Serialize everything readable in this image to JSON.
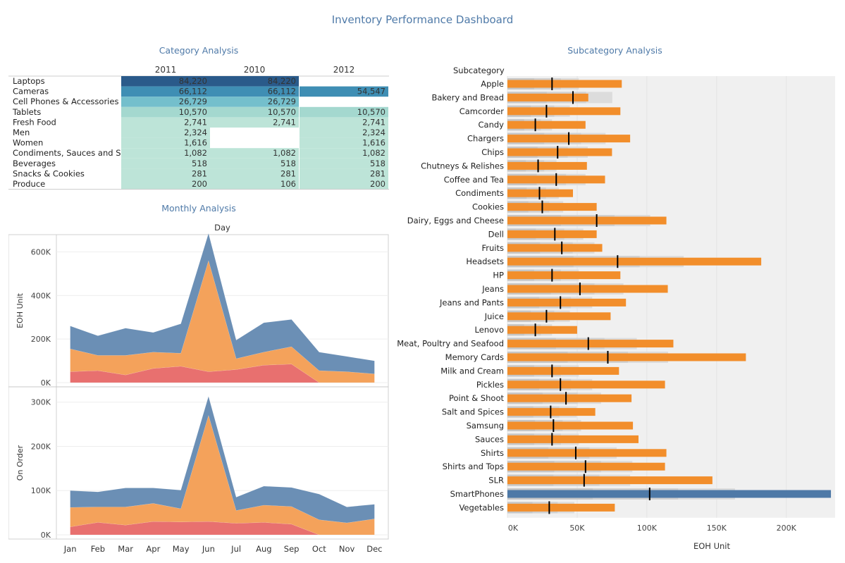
{
  "dashboard": {
    "title": "Inventory Performance Dashboard",
    "category_title": "Category Analysis",
    "monthly_title": "Monthly Analysis",
    "subcategory_title": "Subcategory Analysis"
  },
  "colors": {
    "title": "#4f7aa8",
    "orange": "#f28e2b",
    "orange_light": "#f4a25b",
    "blue": "#6b8fb5",
    "red": "#e8706f",
    "smartphone_blue": "#4e79a7",
    "heat": [
      "#bde4d8",
      "#a4d8cf",
      "#74bfcc",
      "#3f8eb4",
      "#2a5a8a"
    ]
  },
  "chart_data": [
    {
      "type": "table",
      "title": "Category Analysis",
      "columns": [
        "2011",
        "2010",
        "2012"
      ],
      "rows": [
        {
          "label": "Laptops",
          "values": [
            "84,220",
            "84,220",
            null
          ],
          "raw": [
            84220,
            84220,
            null
          ]
        },
        {
          "label": "Cameras",
          "values": [
            "66,112",
            "66,112",
            "54,547"
          ],
          "raw": [
            66112,
            66112,
            54547
          ]
        },
        {
          "label": "Cell Phones & Accessories",
          "values": [
            "26,729",
            "26,729",
            null
          ],
          "raw": [
            26729,
            26729,
            null
          ]
        },
        {
          "label": "Tablets",
          "values": [
            "10,570",
            "10,570",
            "10,570"
          ],
          "raw": [
            10570,
            10570,
            10570
          ]
        },
        {
          "label": "Fresh Food",
          "values": [
            "2,741",
            "2,741",
            "2,741"
          ],
          "raw": [
            2741,
            2741,
            2741
          ]
        },
        {
          "label": "Men",
          "values": [
            "2,324",
            null,
            "2,324"
          ],
          "raw": [
            2324,
            null,
            2324
          ]
        },
        {
          "label": "Women",
          "values": [
            "1,616",
            null,
            "1,616"
          ],
          "raw": [
            1616,
            null,
            1616
          ]
        },
        {
          "label": "Condiments, Sauces and S..",
          "values": [
            "1,082",
            "1,082",
            "1,082"
          ],
          "raw": [
            1082,
            1082,
            1082
          ]
        },
        {
          "label": "Beverages",
          "values": [
            "518",
            "518",
            "518"
          ],
          "raw": [
            518,
            518,
            518
          ]
        },
        {
          "label": "Snacks & Cookies",
          "values": [
            "281",
            "281",
            "281"
          ],
          "raw": [
            281,
            281,
            281
          ]
        },
        {
          "label": "Produce",
          "values": [
            "200",
            "106",
            "200"
          ],
          "raw": [
            200,
            106,
            200
          ]
        }
      ]
    },
    {
      "type": "area",
      "title": "Monthly Analysis",
      "xlabel": "Day",
      "categories": [
        "Jan",
        "Feb",
        "Mar",
        "Apr",
        "May",
        "Jun",
        "Jul",
        "Aug",
        "Sep",
        "Oct",
        "Nov",
        "Dec"
      ],
      "panels": [
        {
          "ylabel": "EOH Unit",
          "ylim": [
            0,
            660000
          ],
          "yticks": [
            0,
            200000,
            400000,
            600000
          ],
          "ytick_labels": [
            "0K",
            "200K",
            "400K",
            "600K"
          ],
          "series": [
            {
              "values": [
                50000,
                55000,
                35000,
                65000,
                75000,
                50000,
                60000,
                80000,
                85000,
                0,
                0,
                0
              ]
            },
            {
              "values": [
                105000,
                70000,
                90000,
                75000,
                60000,
                510000,
                50000,
                60000,
                80000,
                55000,
                50000,
                40000
              ]
            },
            {
              "values": [
                105000,
                90000,
                125000,
                90000,
                135000,
                125000,
                85000,
                135000,
                125000,
                85000,
                70000,
                60000
              ]
            }
          ]
        },
        {
          "ylabel": "On Order",
          "ylim": [
            0,
            325000
          ],
          "yticks": [
            0,
            100000,
            200000,
            300000
          ],
          "ytick_labels": [
            "0K",
            "100K",
            "200K",
            "300K"
          ],
          "series": [
            {
              "values": [
                18000,
                28000,
                22000,
                30000,
                29000,
                30000,
                26000,
                28000,
                24000,
                0,
                0,
                0
              ]
            },
            {
              "values": [
                44000,
                35000,
                41000,
                41000,
                30000,
                240000,
                29000,
                39000,
                40000,
                34000,
                27000,
                36000
              ]
            },
            {
              "values": [
                38000,
                34000,
                43000,
                35000,
                42000,
                43000,
                30000,
                43000,
                43000,
                58000,
                36000,
                33000
              ]
            }
          ]
        }
      ]
    },
    {
      "type": "bar",
      "title": "Subcategory Analysis",
      "header": "Subcategory",
      "xlabel": "EOH Unit",
      "xlim": [
        0,
        235000
      ],
      "xticks": [
        0,
        50000,
        100000,
        150000,
        200000
      ],
      "xtick_labels": [
        "0K",
        "50K",
        "100K",
        "150K",
        "200K"
      ],
      "categories": [
        "Apple",
        "Bakery and Bread",
        "Camcorder",
        "Candy",
        "Chargers",
        "Chips",
        "Chutneys & Relishes",
        "Coffee and Tea",
        "Condiments",
        "Cookies",
        "Dairy, Eggs and Cheese",
        "Dell",
        "Fruits",
        "Headsets",
        "HP",
        "Jeans",
        "Jeans and Pants",
        "Juice",
        "Lenovo",
        "Meat, Poultry and Seafood",
        "Memory Cards",
        "Milk and Cream",
        "Pickles",
        "Point & Shoot",
        "Salt and Spices",
        "Samsung",
        "Sauces",
        "Shirts",
        "Shirts and Tops",
        "SLR",
        "SmartPhones",
        "Vegetables"
      ],
      "values": [
        82000,
        58000,
        81000,
        56000,
        88000,
        75000,
        57000,
        70000,
        47000,
        64000,
        114000,
        64000,
        68000,
        182000,
        81000,
        115000,
        85000,
        74000,
        50000,
        119000,
        171000,
        80000,
        113000,
        89000,
        63000,
        90000,
        94000,
        114000,
        113000,
        147000,
        232000,
        77000
      ],
      "reference": [
        32000,
        47000,
        28000,
        20000,
        44000,
        36000,
        22000,
        35000,
        23000,
        25000,
        64000,
        34000,
        39000,
        79000,
        32000,
        52000,
        38000,
        28000,
        20000,
        58000,
        72000,
        32000,
        38000,
        42000,
        31000,
        33000,
        32000,
        49000,
        56000,
        55000,
        102000,
        30000
      ],
      "highlight": "SmartPhones"
    }
  ]
}
